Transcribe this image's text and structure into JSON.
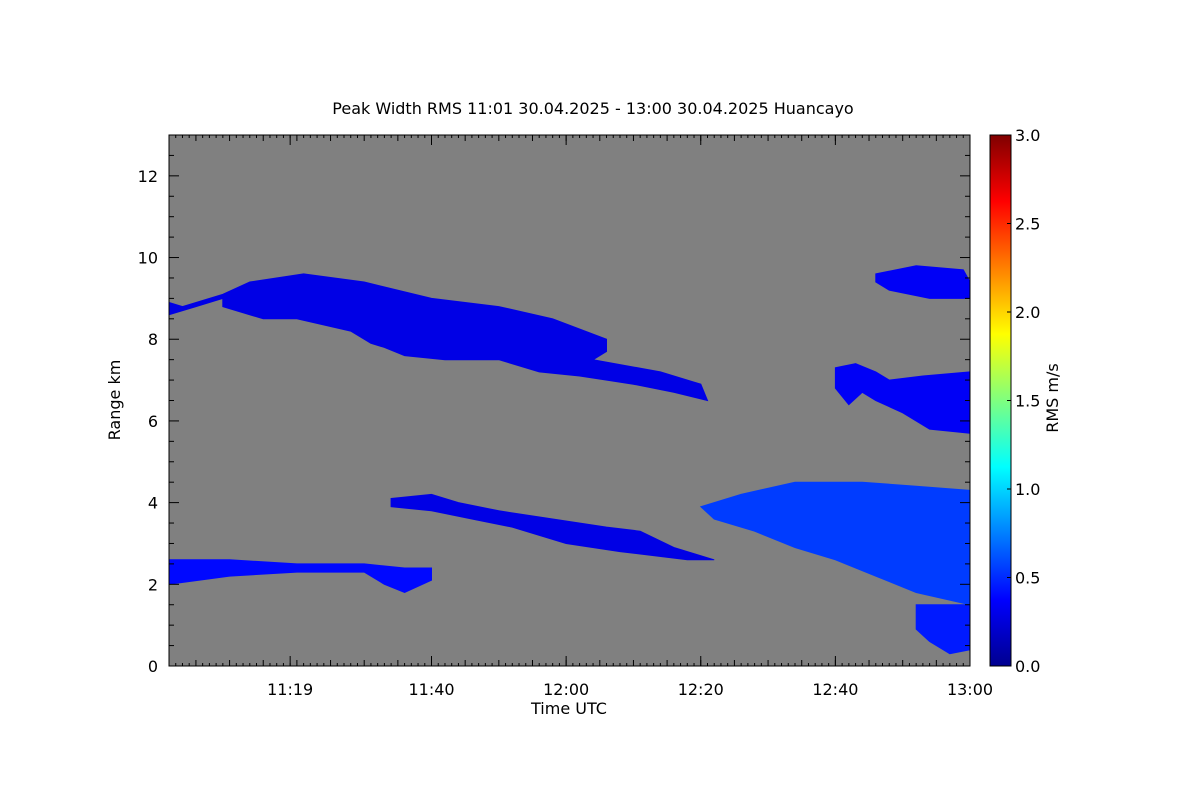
{
  "chart_data": {
    "type": "heatmap",
    "title": "Peak Width RMS   11:01 30.04.2025 - 13:00 30.04.2025 Huancayo",
    "xlabel": "Time UTC",
    "ylabel": "Range km",
    "xlim_minutes_after_11_00": [
      1,
      120
    ],
    "ylim": [
      0,
      13
    ],
    "x_ticks": [
      {
        "label": "11:19",
        "value": 19
      },
      {
        "label": "11:40",
        "value": 40
      },
      {
        "label": "12:00",
        "value": 60
      },
      {
        "label": "12:20",
        "value": 80
      },
      {
        "label": "12:40",
        "value": 100
      },
      {
        "label": "13:00",
        "value": 120
      }
    ],
    "y_ticks": [
      {
        "label": "0",
        "value": 0
      },
      {
        "label": "2",
        "value": 2
      },
      {
        "label": "4",
        "value": 4
      },
      {
        "label": "6",
        "value": 6
      },
      {
        "label": "8",
        "value": 8
      },
      {
        "label": "10",
        "value": 10
      },
      {
        "label": "12",
        "value": 12
      }
    ],
    "background_color": "#808080",
    "colorbar": {
      "label": "RMS m/s",
      "range": [
        0,
        3
      ],
      "colormap": "jet",
      "ticks": [
        {
          "label": "0.0",
          "value": 0
        },
        {
          "label": "0.5",
          "value": 0.5
        },
        {
          "label": "1.0",
          "value": 1
        },
        {
          "label": "1.5",
          "value": 1.5
        },
        {
          "label": "2.0",
          "value": 2
        },
        {
          "label": "2.5",
          "value": 2.5
        },
        {
          "label": "3.0",
          "value": 3
        }
      ]
    },
    "echo_regions": [
      {
        "id": "upper-layer-left",
        "value": 0.3,
        "outline": [
          [
            1,
            8.9
          ],
          [
            3,
            8.8
          ],
          [
            9,
            9.1
          ],
          [
            13,
            9.4
          ],
          [
            21,
            9.6
          ],
          [
            30,
            9.4
          ],
          [
            40,
            9.0
          ],
          [
            50,
            8.8
          ],
          [
            58,
            8.5
          ],
          [
            66,
            8.0
          ],
          [
            66,
            7.7
          ],
          [
            64,
            7.5
          ],
          [
            74,
            7.2
          ],
          [
            80,
            6.9
          ],
          [
            81,
            6.5
          ],
          [
            76,
            6.7
          ],
          [
            70,
            6.9
          ],
          [
            62,
            7.1
          ],
          [
            56,
            7.2
          ],
          [
            50,
            7.5
          ],
          [
            42,
            7.5
          ],
          [
            36,
            7.6
          ],
          [
            33,
            7.8
          ],
          [
            31,
            7.9
          ],
          [
            28,
            8.2
          ],
          [
            20,
            8.5
          ],
          [
            15,
            8.5
          ],
          [
            9,
            8.8
          ],
          [
            9,
            9.0
          ],
          [
            5,
            8.8
          ],
          [
            1,
            8.6
          ]
        ]
      },
      {
        "id": "upper-layer-right-top",
        "value": 0.35,
        "outline": [
          [
            106,
            9.6
          ],
          [
            112,
            9.8
          ],
          [
            119,
            9.7
          ],
          [
            120,
            9.4
          ],
          [
            120,
            9.0
          ],
          [
            114,
            9.0
          ],
          [
            108,
            9.2
          ],
          [
            106,
            9.4
          ]
        ]
      },
      {
        "id": "upper-layer-right-mid",
        "value": 0.35,
        "outline": [
          [
            100,
            7.3
          ],
          [
            103,
            7.4
          ],
          [
            106,
            7.2
          ],
          [
            108,
            7.0
          ],
          [
            113,
            7.1
          ],
          [
            120,
            7.2
          ],
          [
            120,
            5.7
          ],
          [
            114,
            5.8
          ],
          [
            110,
            6.2
          ],
          [
            106,
            6.5
          ],
          [
            104,
            6.7
          ],
          [
            102,
            6.4
          ],
          [
            100,
            6.8
          ]
        ]
      },
      {
        "id": "middle-layer",
        "value": 0.3,
        "outline": [
          [
            34,
            4.1
          ],
          [
            40,
            4.2
          ],
          [
            44,
            4.0
          ],
          [
            50,
            3.8
          ],
          [
            58,
            3.6
          ],
          [
            66,
            3.4
          ],
          [
            71,
            3.3
          ],
          [
            76,
            2.9
          ],
          [
            82,
            2.6
          ],
          [
            78,
            2.6
          ],
          [
            68,
            2.8
          ],
          [
            60,
            3.0
          ],
          [
            52,
            3.4
          ],
          [
            46,
            3.6
          ],
          [
            40,
            3.8
          ],
          [
            34,
            3.9
          ]
        ]
      },
      {
        "id": "lower-right-cloud",
        "value": 0.55,
        "outline": [
          [
            80,
            3.9
          ],
          [
            86,
            4.2
          ],
          [
            94,
            4.5
          ],
          [
            104,
            4.5
          ],
          [
            112,
            4.4
          ],
          [
            120,
            4.3
          ],
          [
            120,
            1.5
          ],
          [
            112,
            1.8
          ],
          [
            106,
            2.2
          ],
          [
            100,
            2.6
          ],
          [
            94,
            2.9
          ],
          [
            88,
            3.3
          ],
          [
            82,
            3.6
          ]
        ]
      },
      {
        "id": "low-layer",
        "value": 0.4,
        "outline": [
          [
            1,
            2.6
          ],
          [
            10,
            2.6
          ],
          [
            20,
            2.5
          ],
          [
            30,
            2.5
          ],
          [
            36,
            2.4
          ],
          [
            40,
            2.4
          ],
          [
            40,
            2.1
          ],
          [
            36,
            1.8
          ],
          [
            33,
            2.0
          ],
          [
            30,
            2.3
          ],
          [
            20,
            2.3
          ],
          [
            10,
            2.2
          ],
          [
            1,
            2.0
          ]
        ]
      },
      {
        "id": "lower-right-base",
        "value": 0.45,
        "outline": [
          [
            112,
            1.5
          ],
          [
            120,
            1.5
          ],
          [
            120,
            0.4
          ],
          [
            117,
            0.3
          ],
          [
            114,
            0.6
          ],
          [
            112,
            0.9
          ]
        ]
      }
    ]
  }
}
